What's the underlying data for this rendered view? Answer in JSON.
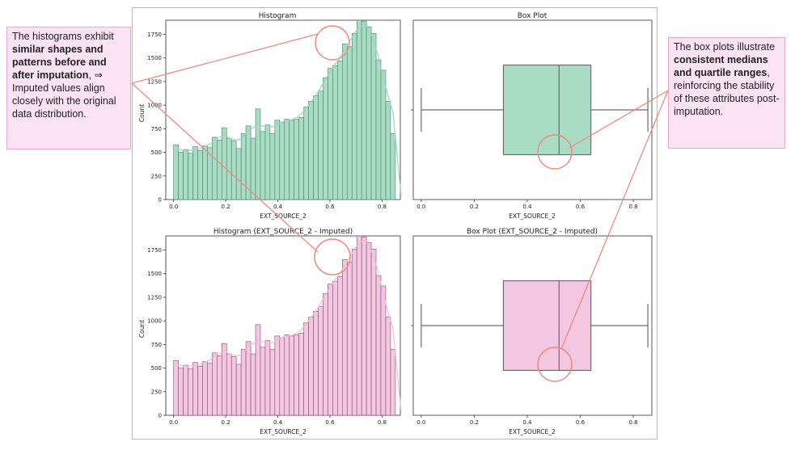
{
  "charts": {
    "hist_top": {
      "title": "Histogram",
      "xlabel": "EXT_SOURCE_2",
      "ylabel": "Count"
    },
    "box_top": {
      "title": "Box Plot",
      "xlabel": "EXT_SOURCE_2"
    },
    "hist_bottom": {
      "title": "Histogram (EXT_SOURCE_2 - Imputed)",
      "xlabel": "EXT_SOURCE_2",
      "ylabel": "Count"
    },
    "box_bottom": {
      "title": "Box Plot (EXT_SOURCE_2 - Imputed)",
      "xlabel": "EXT_SOURCE_2"
    }
  },
  "callouts": {
    "left": {
      "t1": "The histograms exhibit ",
      "b1": "similar shapes and patterns before and after imputation",
      "t2": ", ⇒ Imputed values align closely with the original data distribution."
    },
    "right": {
      "t1": "The box plots illustrate ",
      "b1": "consistent medians and quartile ranges",
      "t2": ", reinforcing the stability of these attributes post-imputation."
    }
  },
  "colors": {
    "green_fill": "#a8dcc4",
    "pink_fill": "#f3c6e2",
    "callout_bg": "#fbe3f3",
    "annotation_red": "#ef8a7e"
  },
  "chart_data": [
    {
      "type": "bar",
      "chart": "histogram",
      "title": "Histogram",
      "xlabel": "EXT_SOURCE_2",
      "ylabel": "Count",
      "xlim": [
        -0.03,
        0.87
      ],
      "ylim": [
        0,
        1900
      ],
      "xticks": [
        "0.0",
        "0.2",
        "0.4",
        "0.6",
        "0.8"
      ],
      "yticks": [
        "0",
        "250",
        "500",
        "750",
        "1000",
        "1250",
        "1500",
        "1750"
      ],
      "bin_start": 0.0,
      "bin_width": 0.0185,
      "values": [
        580,
        500,
        530,
        490,
        560,
        520,
        570,
        550,
        660,
        630,
        760,
        650,
        620,
        540,
        700,
        780,
        650,
        960,
        720,
        790,
        700,
        840,
        820,
        850,
        840,
        850,
        870,
        980,
        1040,
        1100,
        1150,
        1290,
        1390,
        1420,
        1470,
        1650,
        1620,
        1760,
        1900,
        1890,
        1830,
        1760,
        1480,
        1370,
        1040,
        700
      ]
    },
    {
      "type": "box",
      "title": "Box Plot",
      "xlabel": "EXT_SOURCE_2",
      "xlim": [
        -0.03,
        0.87
      ],
      "xticks": [
        "0.0",
        "0.2",
        "0.4",
        "0.6",
        "0.8"
      ],
      "whisker_low": 0.0,
      "q1": 0.31,
      "median": 0.52,
      "q3": 0.64,
      "whisker_high": 0.855
    },
    {
      "type": "bar",
      "chart": "histogram",
      "title": "Histogram (EXT_SOURCE_2 - Imputed)",
      "xlabel": "EXT_SOURCE_2",
      "ylabel": "Count",
      "xlim": [
        -0.03,
        0.87
      ],
      "ylim": [
        0,
        1900
      ],
      "xticks": [
        "0.0",
        "0.2",
        "0.4",
        "0.6",
        "0.8"
      ],
      "yticks": [
        "0",
        "250",
        "500",
        "750",
        "1000",
        "1250",
        "1500",
        "1750"
      ],
      "bin_start": 0.0,
      "bin_width": 0.0185,
      "values": [
        580,
        500,
        530,
        490,
        560,
        520,
        570,
        550,
        660,
        630,
        760,
        650,
        620,
        540,
        700,
        780,
        650,
        960,
        720,
        790,
        700,
        840,
        820,
        850,
        840,
        850,
        870,
        980,
        1040,
        1100,
        1150,
        1290,
        1390,
        1420,
        1470,
        1650,
        1620,
        1760,
        1900,
        1890,
        1830,
        1760,
        1480,
        1370,
        1040,
        700
      ]
    },
    {
      "type": "box",
      "title": "Box Plot (EXT_SOURCE_2 - Imputed)",
      "xlabel": "EXT_SOURCE_2",
      "xlim": [
        -0.03,
        0.87
      ],
      "xticks": [
        "0.0",
        "0.2",
        "0.4",
        "0.6",
        "0.8"
      ],
      "whisker_low": 0.0,
      "q1": 0.31,
      "median": 0.52,
      "q3": 0.64,
      "whisker_high": 0.855
    }
  ]
}
